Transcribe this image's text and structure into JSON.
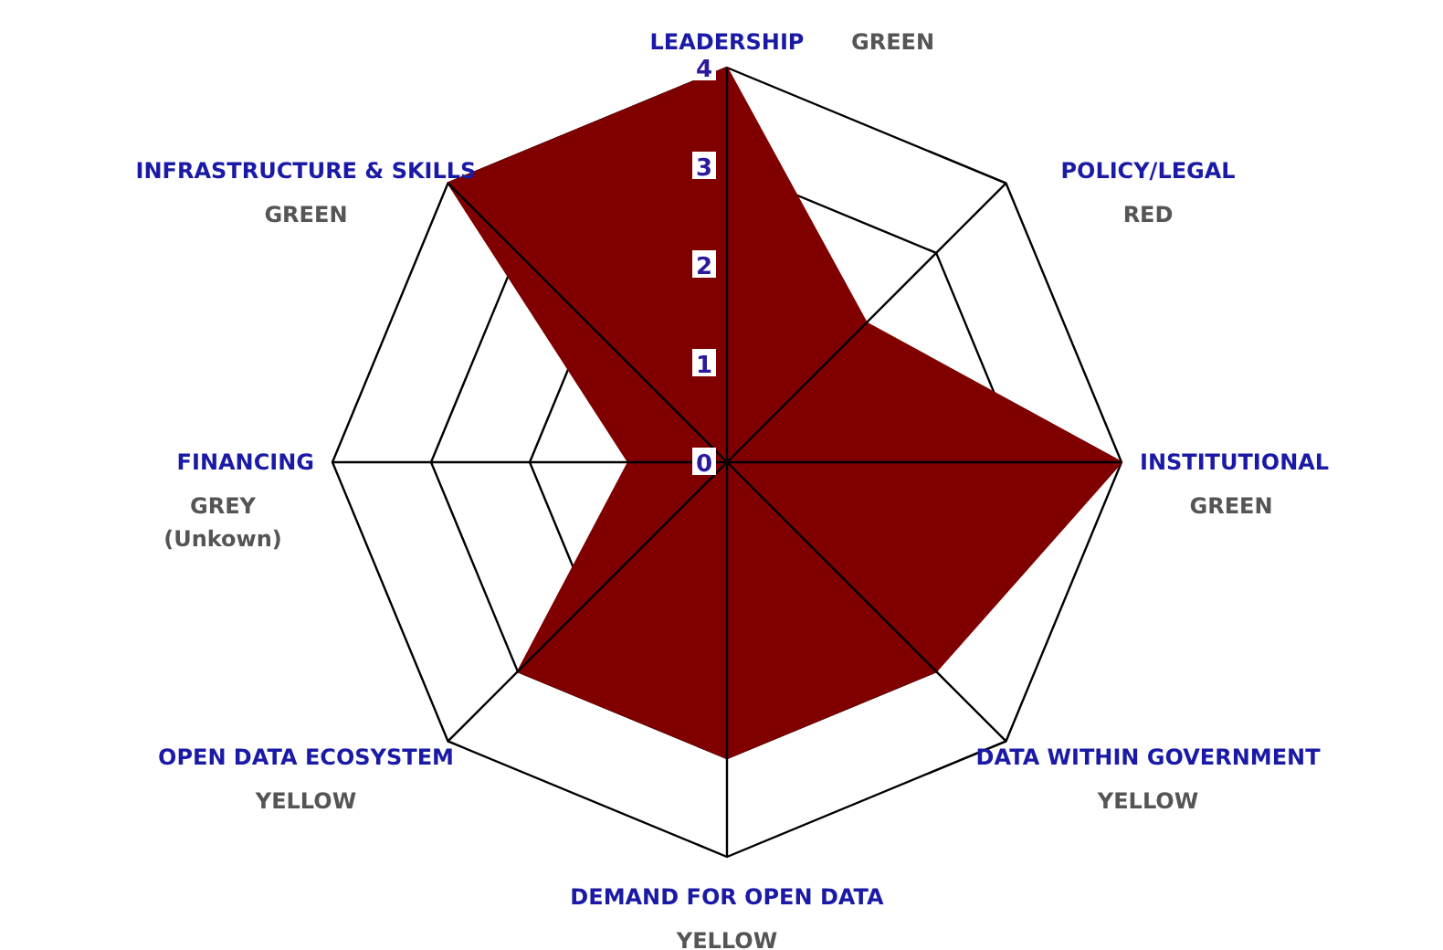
{
  "chart_data": {
    "type": "radar",
    "categories": [
      "LEADERSHIP",
      "POLICY/LEGAL",
      "INSTITUTIONAL",
      "DATA WITHIN GOVERNMENT",
      "DEMAND FOR OPEN DATA",
      "OPEN DATA ECOSYSTEM",
      "FINANCING",
      "INFRASTRUCTURE & SKILLS"
    ],
    "series": [
      {
        "color": "#800000",
        "values": [
          4,
          2,
          4,
          3,
          3,
          3,
          1,
          4
        ]
      }
    ],
    "ylim": [
      0,
      4
    ],
    "yticks": [
      0,
      1,
      2,
      3,
      4
    ],
    "annotations": [
      {
        "text": "GREEN",
        "x": "LEADERSHIP"
      },
      {
        "text": "RED",
        "x": "POLICY/LEGAL"
      },
      {
        "text": "GREEN",
        "x": "INSTITUTIONAL"
      },
      {
        "text": "YELLOW",
        "x": "DATA WITHIN GOVERNMENT"
      },
      {
        "text": "YELLOW",
        "x": "DEMAND FOR OPEN DATA"
      },
      {
        "text": "YELLOW",
        "x": "OPEN DATA ECOSYSTEM"
      },
      {
        "text": "GREY\n(Unkown)",
        "x": "FINANCING"
      },
      {
        "text": "GREEN",
        "x": "INFRASTRUCTURE & SKILLS"
      }
    ]
  }
}
